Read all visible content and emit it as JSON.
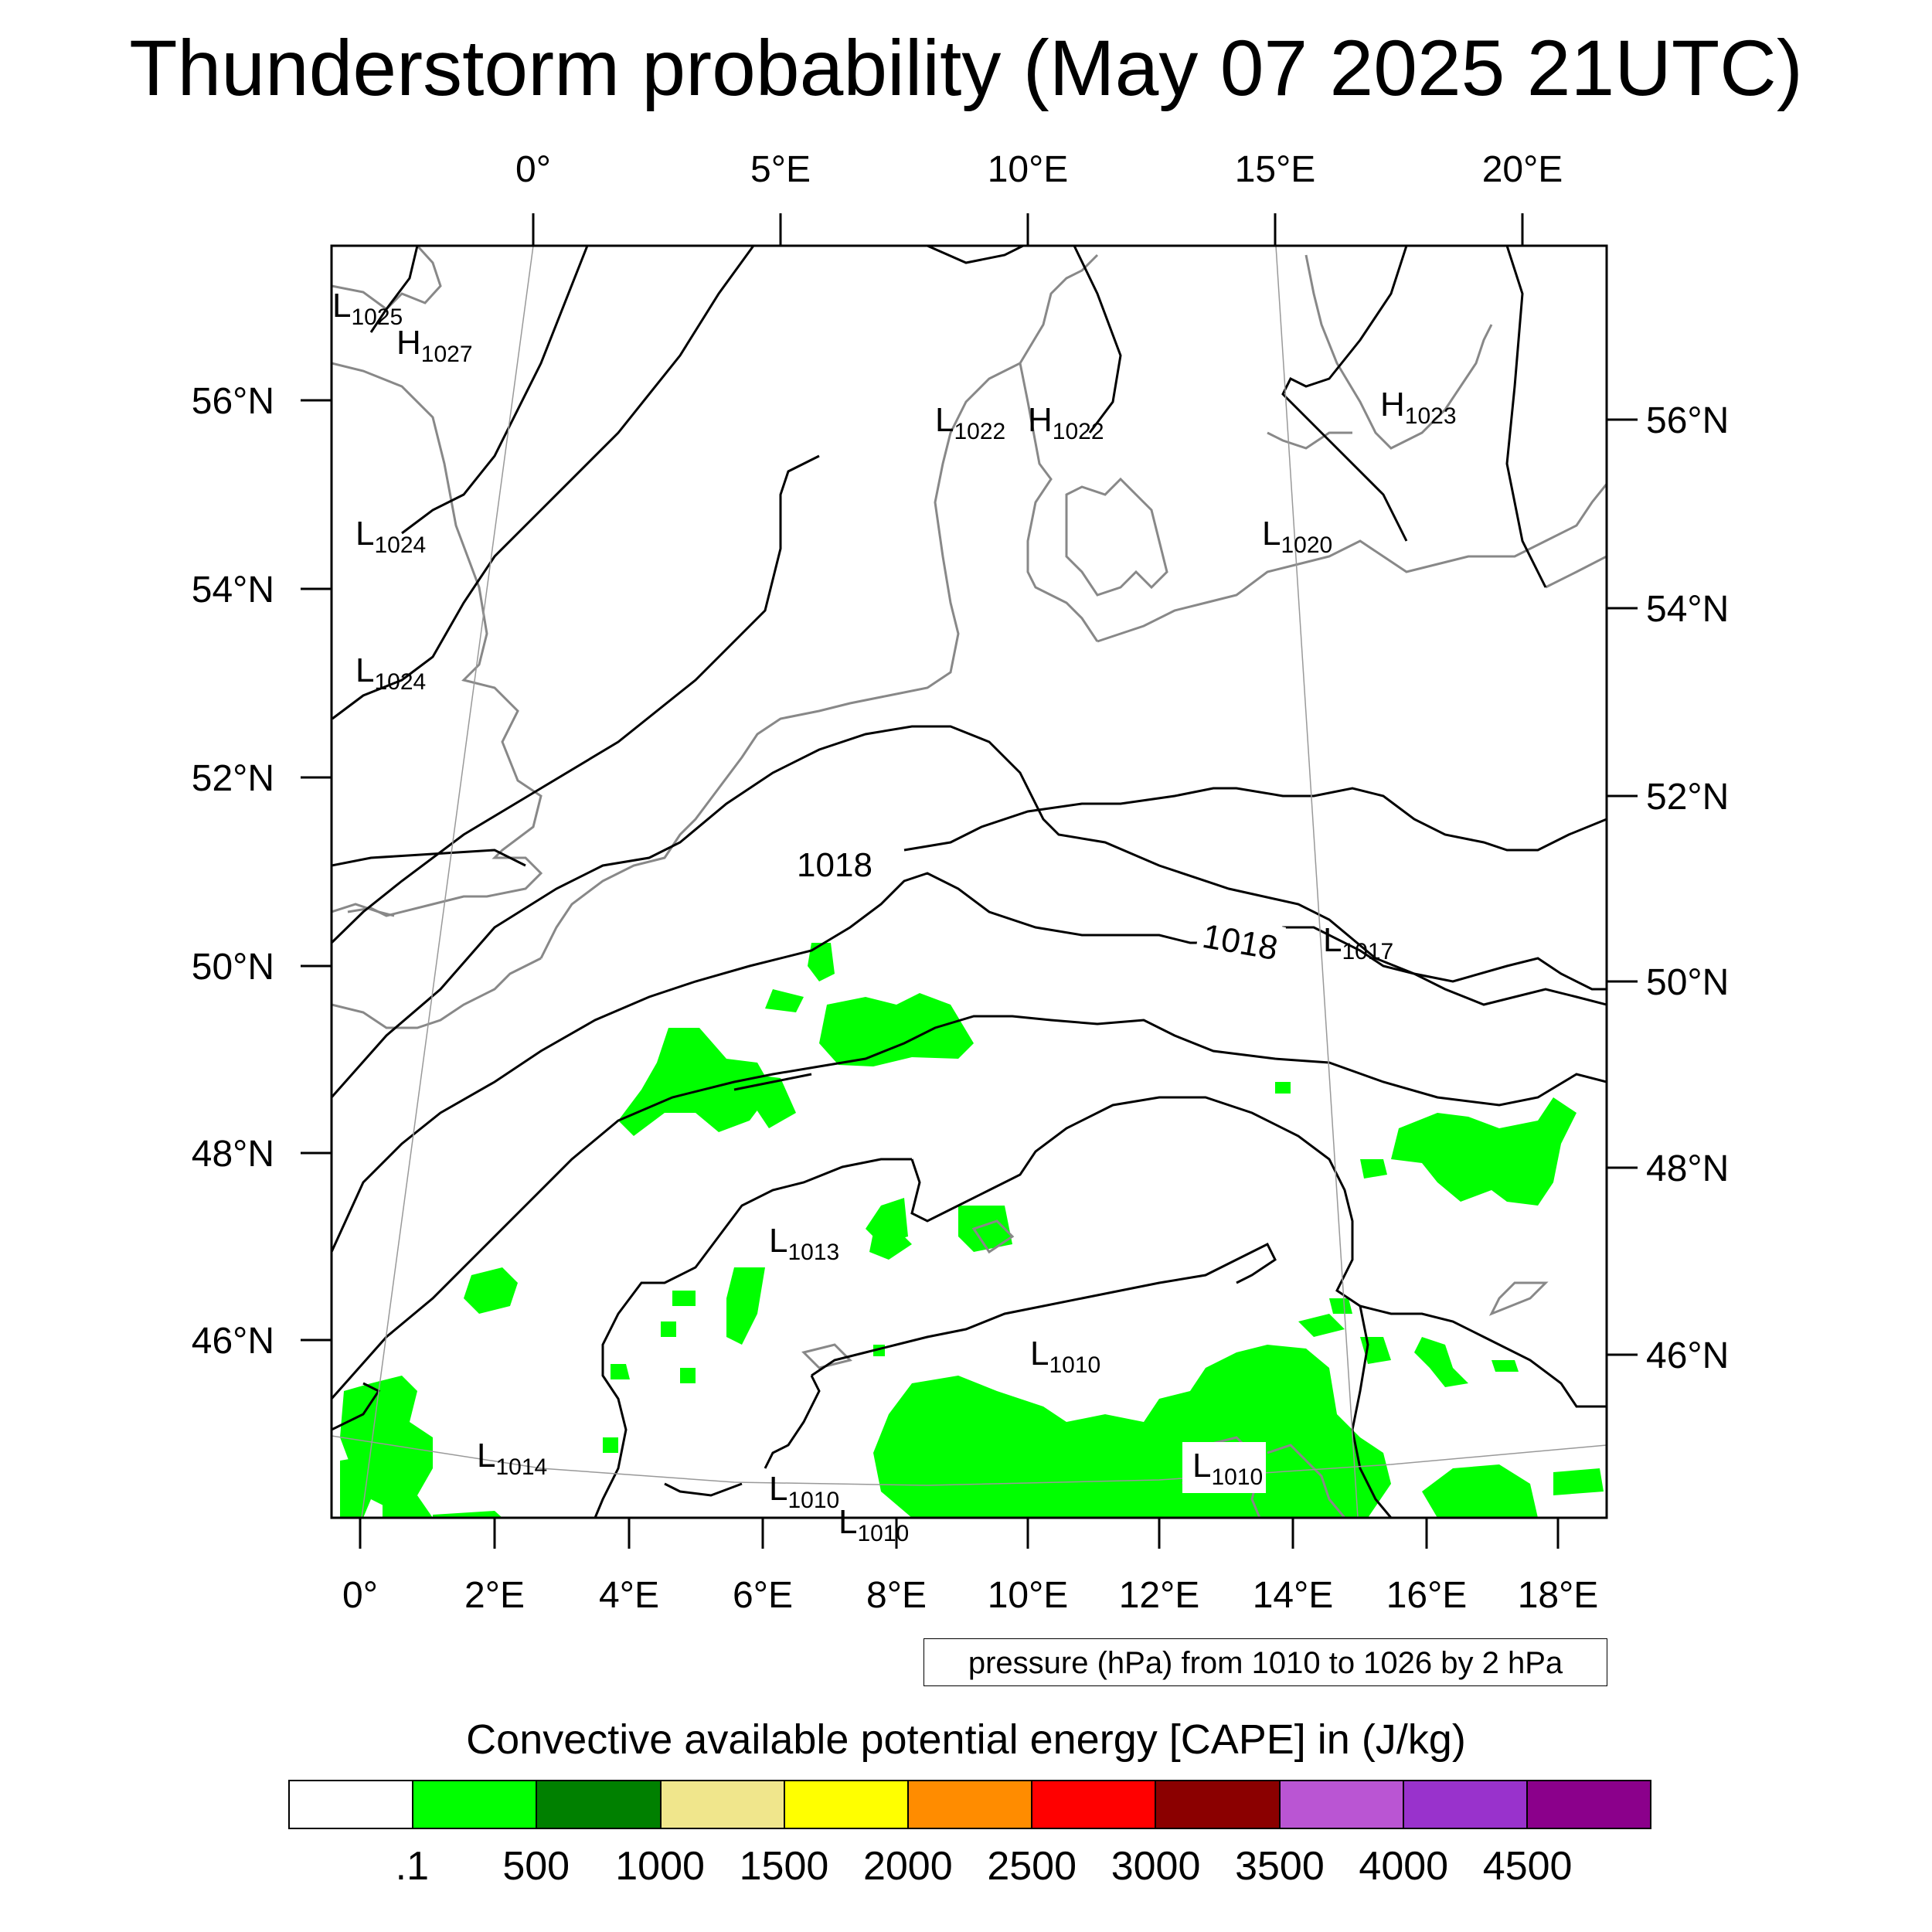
{
  "title": "Thunderstorm probability (May 07 2025 21UTC)",
  "top_lon_labels": [
    "0°",
    "5°E",
    "10°E",
    "15°E",
    "20°E"
  ],
  "bottom_lon_labels": [
    "0°",
    "2°E",
    "4°E",
    "6°E",
    "8°E",
    "10°E",
    "12°E",
    "14°E",
    "16°E",
    "18°E"
  ],
  "left_lat_labels": [
    "56°N",
    "54°N",
    "52°N",
    "50°N",
    "48°N",
    "46°N"
  ],
  "right_lat_labels": [
    "56°N",
    "54°N",
    "52°N",
    "50°N",
    "48°N",
    "46°N"
  ],
  "pressure_centers": [
    {
      "type": "L",
      "value": "1025"
    },
    {
      "type": "H",
      "value": "1027"
    },
    {
      "type": "L",
      "value": "1024"
    },
    {
      "type": "L",
      "value": "1024"
    },
    {
      "type": "L",
      "value": "1022"
    },
    {
      "type": "H",
      "value": "1022"
    },
    {
      "type": "H",
      "value": "1023"
    },
    {
      "type": "L",
      "value": "1020"
    },
    {
      "type": "L",
      "value": "1017"
    },
    {
      "type": "L",
      "value": "1013"
    },
    {
      "type": "L",
      "value": "1010"
    },
    {
      "type": "L",
      "value": "1014"
    },
    {
      "type": "L",
      "value": "1010"
    },
    {
      "type": "L",
      "value": "1010"
    },
    {
      "type": "L",
      "value": "1010"
    }
  ],
  "isobar_labels": [
    "1018",
    "1018"
  ],
  "pressure_note": "pressure (hPa) from 1010 to 1026 by 2 hPa",
  "colorbar": {
    "title": "Convective available potential energy [CAPE] in (J/kg)",
    "colors": [
      "#ffffff",
      "#00ff00",
      "#008000",
      "#f0e68c",
      "#ffff00",
      "#ff8c00",
      "#ff0000",
      "#8b0000",
      "#ba55d3",
      "#9932cc",
      "#8b008b"
    ],
    "labels": [
      ".1",
      "500",
      "1000",
      "1500",
      "2000",
      "2500",
      "3000",
      "3500",
      "4000",
      "4500"
    ]
  }
}
